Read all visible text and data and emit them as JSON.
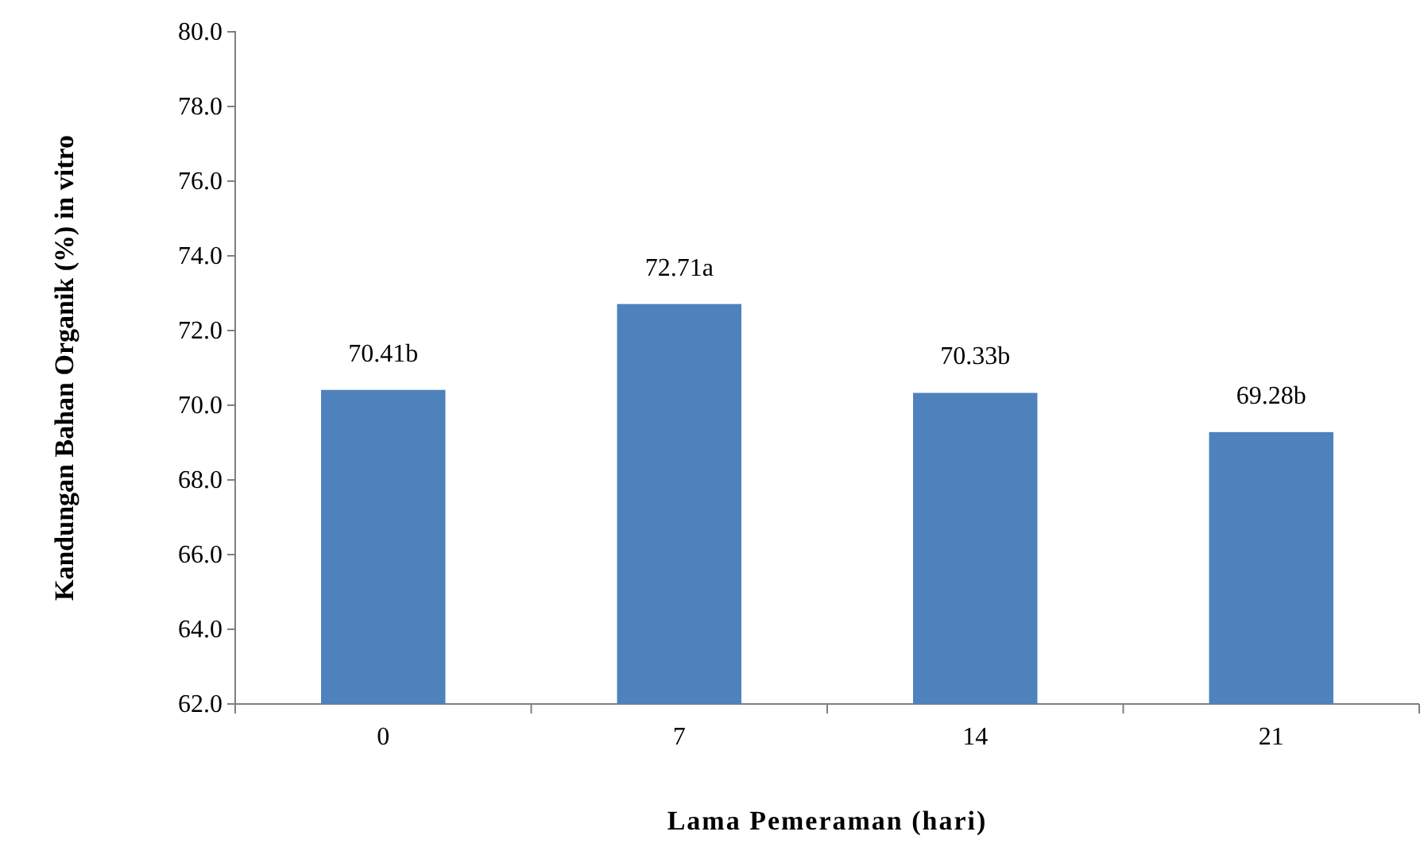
{
  "chart_data": {
    "type": "bar",
    "xlabel": "Lama Pemeraman (hari)",
    "ylabel": "Kandungan Bahan Organik (%) in vitro",
    "categories": [
      "0",
      "7",
      "14",
      "21"
    ],
    "values": [
      70.41,
      72.71,
      70.33,
      69.28
    ],
    "value_labels": [
      "70.41b",
      "72.71a",
      "70.33b",
      "69.28b"
    ],
    "color": "#4f81bd",
    "ylim": [
      62,
      80
    ],
    "yticks": [
      {
        "value": 62,
        "label": "62.0"
      },
      {
        "value": 64,
        "label": "64.0"
      },
      {
        "value": 66,
        "label": "66.0"
      },
      {
        "value": 68,
        "label": "68.0"
      },
      {
        "value": 70,
        "label": "70.0"
      },
      {
        "value": 72,
        "label": "72.0"
      },
      {
        "value": 74,
        "label": "74.0"
      },
      {
        "value": 76,
        "label": "76.0"
      },
      {
        "value": 78,
        "label": "78.0"
      },
      {
        "value": 80,
        "label": "80.0"
      }
    ],
    "grid": false
  }
}
